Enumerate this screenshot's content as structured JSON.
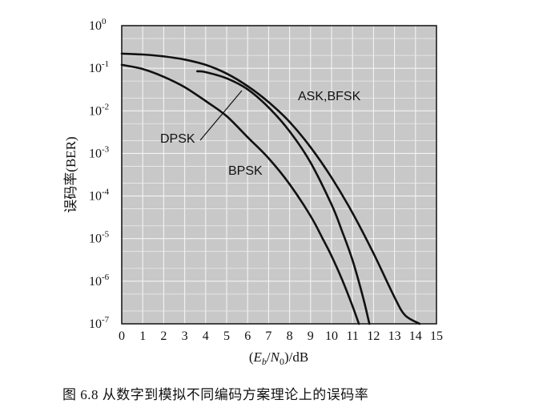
{
  "caption": "图 6.8   从数字到模拟不同编码方案理论上的误码率",
  "chart_data": {
    "type": "line",
    "title": "",
    "xlabel": "(Eb/N0)/dB",
    "ylabel": "误码率(BER)",
    "xlim": [
      0,
      15
    ],
    "ylim_exp": [
      -7,
      0
    ],
    "yscale": "log",
    "x_ticks": [
      "0",
      "1",
      "2",
      "3",
      "4",
      "5",
      "6",
      "7",
      "8",
      "9",
      "10",
      "11",
      "12",
      "13",
      "14",
      "15"
    ],
    "y_ticks": [
      {
        "base": "10",
        "exp": "0"
      },
      {
        "base": "10",
        "exp": "-1"
      },
      {
        "base": "10",
        "exp": "-2"
      },
      {
        "base": "10",
        "exp": "-3"
      },
      {
        "base": "10",
        "exp": "-4"
      },
      {
        "base": "10",
        "exp": "-5"
      },
      {
        "base": "10",
        "exp": "-6"
      },
      {
        "base": "10",
        "exp": "-7"
      }
    ],
    "grid": true,
    "series": [
      {
        "name": "BPSK",
        "x": [
          0,
          1,
          2,
          3,
          4,
          5,
          6,
          7,
          8,
          9,
          9.6,
          10,
          10.5,
          11,
          11.3
        ],
        "y": [
          0.12,
          0.096,
          0.063,
          0.036,
          0.017,
          0.0075,
          0.0024,
          0.00077,
          0.00019,
          3.4e-05,
          9.5e-06,
          3.9e-06,
          1.1e-06,
          2.6e-07,
          1e-07
        ]
      },
      {
        "name": "DPSK",
        "x": [
          3.6,
          4,
          5,
          6,
          7,
          8,
          9,
          10,
          10.5,
          11,
          11.5,
          11.8
        ],
        "y": [
          0.085,
          0.081,
          0.058,
          0.032,
          0.012,
          0.0033,
          0.00061,
          6.3e-05,
          1.5e-05,
          3.1e-06,
          4.2e-07,
          1e-07
        ]
      },
      {
        "name": "ASK,BFSK",
        "x": [
          0,
          1,
          2,
          3,
          4,
          5,
          6,
          7,
          8,
          9,
          10,
          11,
          12,
          13,
          13.5,
          14.2
        ],
        "y": [
          0.22,
          0.21,
          0.19,
          0.16,
          0.12,
          0.075,
          0.038,
          0.016,
          0.0055,
          0.0014,
          0.00027,
          4e-05,
          4.5e-06,
          4.2e-07,
          1.6e-07,
          1e-07
        ]
      }
    ],
    "annotations": [
      {
        "text": "ASK,BFSK",
        "target": "ASK,BFSK"
      },
      {
        "text": "DPSK",
        "target": "DPSK"
      },
      {
        "text": "BPSK",
        "target": "BPSK"
      }
    ]
  }
}
